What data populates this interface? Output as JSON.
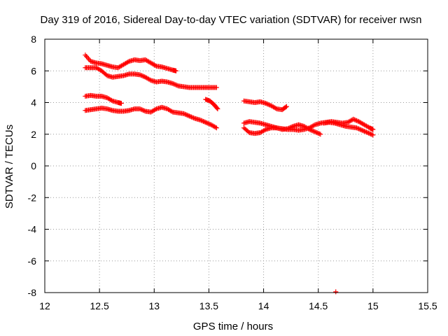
{
  "chart_data": {
    "type": "scatter",
    "title": "Day 319 of 2016, Sidereal Day-to-day VTEC variation (SDTVAR) for receiver rwsn",
    "xlabel": "GPS time / hours",
    "ylabel": "SDTVAR / TECUs",
    "xlim": [
      12,
      15.5
    ],
    "ylim": [
      -8,
      8
    ],
    "xticks": [
      "12",
      "12.5",
      "13",
      "13.5",
      "14",
      "14.5",
      "15",
      "15.5"
    ],
    "yticks": [
      "8",
      "6",
      "4",
      "2",
      "0",
      "-2",
      "-4",
      "-6",
      "-8"
    ],
    "grid": true,
    "marker": "plus",
    "point_color": "#ff0000",
    "series": [
      {
        "x": [
          12.37,
          12.42,
          12.47,
          12.52,
          12.57,
          12.62,
          12.67,
          12.72,
          12.77,
          12.82,
          12.87,
          12.92,
          12.97,
          13.02,
          13.07,
          13.12,
          13.17,
          13.2
        ],
        "y": [
          7.0,
          6.6,
          6.5,
          6.45,
          6.35,
          6.25,
          6.2,
          6.4,
          6.6,
          6.7,
          6.65,
          6.7,
          6.5,
          6.3,
          6.25,
          6.15,
          6.05,
          6.0
        ]
      },
      {
        "x": [
          12.37,
          12.42,
          12.47,
          12.52,
          12.57,
          12.62,
          12.67,
          12.72,
          12.77,
          12.82,
          12.87,
          12.92,
          12.97,
          13.02,
          13.07,
          13.12,
          13.17,
          13.22,
          13.27,
          13.32,
          13.37,
          13.42,
          13.47,
          13.52,
          13.57
        ],
        "y": [
          6.2,
          6.2,
          6.2,
          6.0,
          5.7,
          5.6,
          5.65,
          5.7,
          5.8,
          5.8,
          5.75,
          5.6,
          5.4,
          5.3,
          5.35,
          5.3,
          5.2,
          5.05,
          5.0,
          4.95,
          4.95,
          4.95,
          4.95,
          4.95,
          4.95
        ]
      },
      {
        "x": [
          12.37,
          12.42,
          12.47,
          12.52,
          12.57,
          12.62,
          12.67,
          12.7
        ],
        "y": [
          4.4,
          4.45,
          4.4,
          4.4,
          4.3,
          4.1,
          4.0,
          3.95
        ]
      },
      {
        "x": [
          13.47,
          13.51,
          13.55,
          13.58
        ],
        "y": [
          4.2,
          4.1,
          3.85,
          3.6
        ]
      },
      {
        "x": [
          12.37,
          12.42,
          12.47,
          12.52,
          12.57,
          12.62,
          12.67,
          12.72,
          12.77,
          12.82,
          12.87,
          12.92,
          12.97,
          13.02,
          13.07,
          13.12,
          13.17,
          13.22,
          13.27,
          13.32,
          13.37,
          13.42,
          13.47,
          13.52,
          13.57
        ],
        "y": [
          3.5,
          3.55,
          3.6,
          3.65,
          3.6,
          3.5,
          3.45,
          3.45,
          3.5,
          3.6,
          3.6,
          3.45,
          3.4,
          3.6,
          3.7,
          3.6,
          3.4,
          3.35,
          3.3,
          3.15,
          3.0,
          2.9,
          2.75,
          2.6,
          2.4
        ]
      },
      {
        "x": [
          13.82,
          13.87,
          13.92,
          13.97,
          14.02,
          14.07,
          14.12,
          14.17,
          14.21
        ],
        "y": [
          4.1,
          4.05,
          4.0,
          4.05,
          3.95,
          3.8,
          3.6,
          3.55,
          3.75
        ]
      },
      {
        "x": [
          13.82,
          13.87,
          13.92,
          13.97,
          14.02,
          14.07,
          14.12,
          14.17,
          14.22,
          14.27,
          14.32,
          14.37,
          14.42,
          14.47,
          14.52,
          14.57,
          14.62,
          14.67,
          14.72,
          14.77,
          14.82,
          14.87,
          14.92,
          14.97,
          15.0
        ],
        "y": [
          2.7,
          2.8,
          2.75,
          2.7,
          2.6,
          2.5,
          2.4,
          2.35,
          2.3,
          2.3,
          2.25,
          2.3,
          2.4,
          2.6,
          2.7,
          2.75,
          2.8,
          2.75,
          2.7,
          2.75,
          2.95,
          2.8,
          2.6,
          2.4,
          2.3
        ]
      },
      {
        "x": [
          13.82,
          13.87,
          13.92,
          13.97,
          14.02,
          14.07,
          14.12,
          14.17,
          14.22,
          14.27,
          14.32,
          14.37,
          14.42,
          14.47,
          14.52
        ],
        "y": [
          2.4,
          2.1,
          2.05,
          2.1,
          2.3,
          2.4,
          2.4,
          2.3,
          2.35,
          2.5,
          2.6,
          2.5,
          2.3,
          2.15,
          2.0
        ]
      },
      {
        "x": [
          14.55,
          14.6,
          14.65,
          14.7,
          14.75,
          14.8,
          14.85,
          14.9,
          14.95,
          15.0
        ],
        "y": [
          2.7,
          2.75,
          2.7,
          2.6,
          2.5,
          2.45,
          2.4,
          2.25,
          2.1,
          1.95
        ]
      },
      {
        "x": [
          14.66
        ],
        "y": [
          -7.95
        ]
      }
    ]
  }
}
